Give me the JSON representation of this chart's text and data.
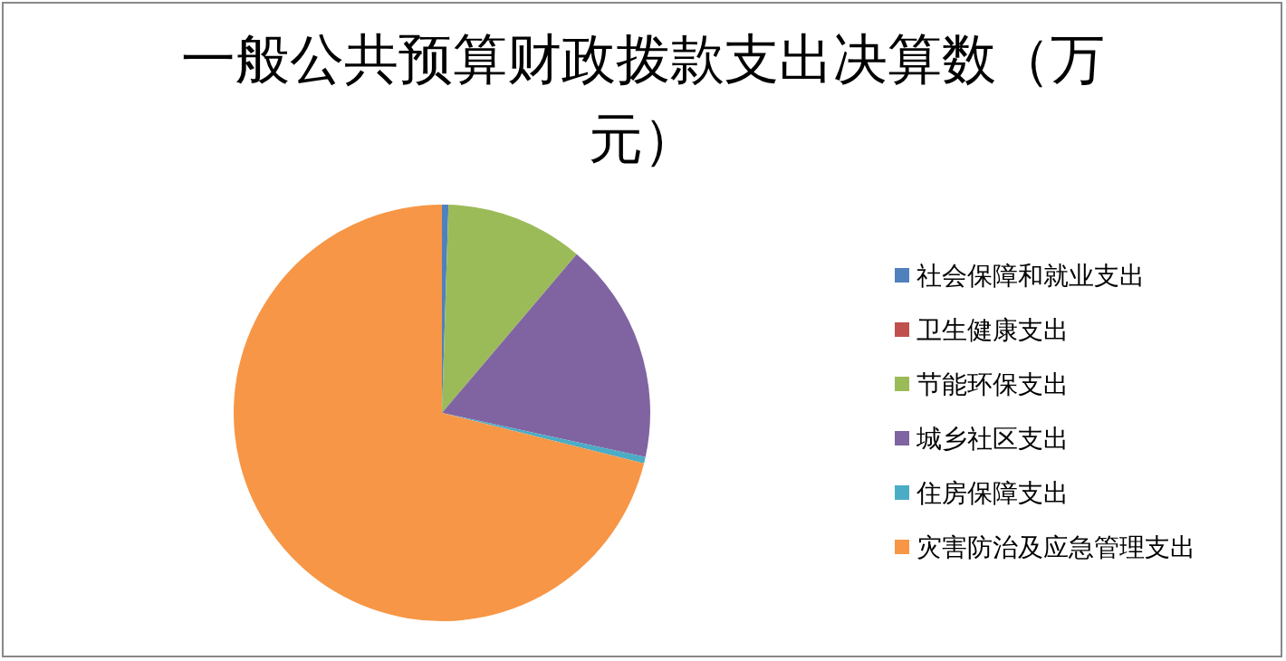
{
  "chart_data": {
    "type": "pie",
    "title": "一般公共预算财政拨款支出决算数（万元）",
    "categories": [
      "社会保障和就业支出",
      "卫生健康支出",
      "节能环保支出",
      "城乡社区支出",
      "住房保障支出",
      "灾害防治及应急管理支出"
    ],
    "values": [
      0.5,
      0,
      10.7,
      17.2,
      0.5,
      71.1
    ],
    "colors": [
      "#4f81bd",
      "#c0504d",
      "#9bbb59",
      "#8064a2",
      "#4bacc6",
      "#f79646"
    ],
    "legend": "right"
  }
}
